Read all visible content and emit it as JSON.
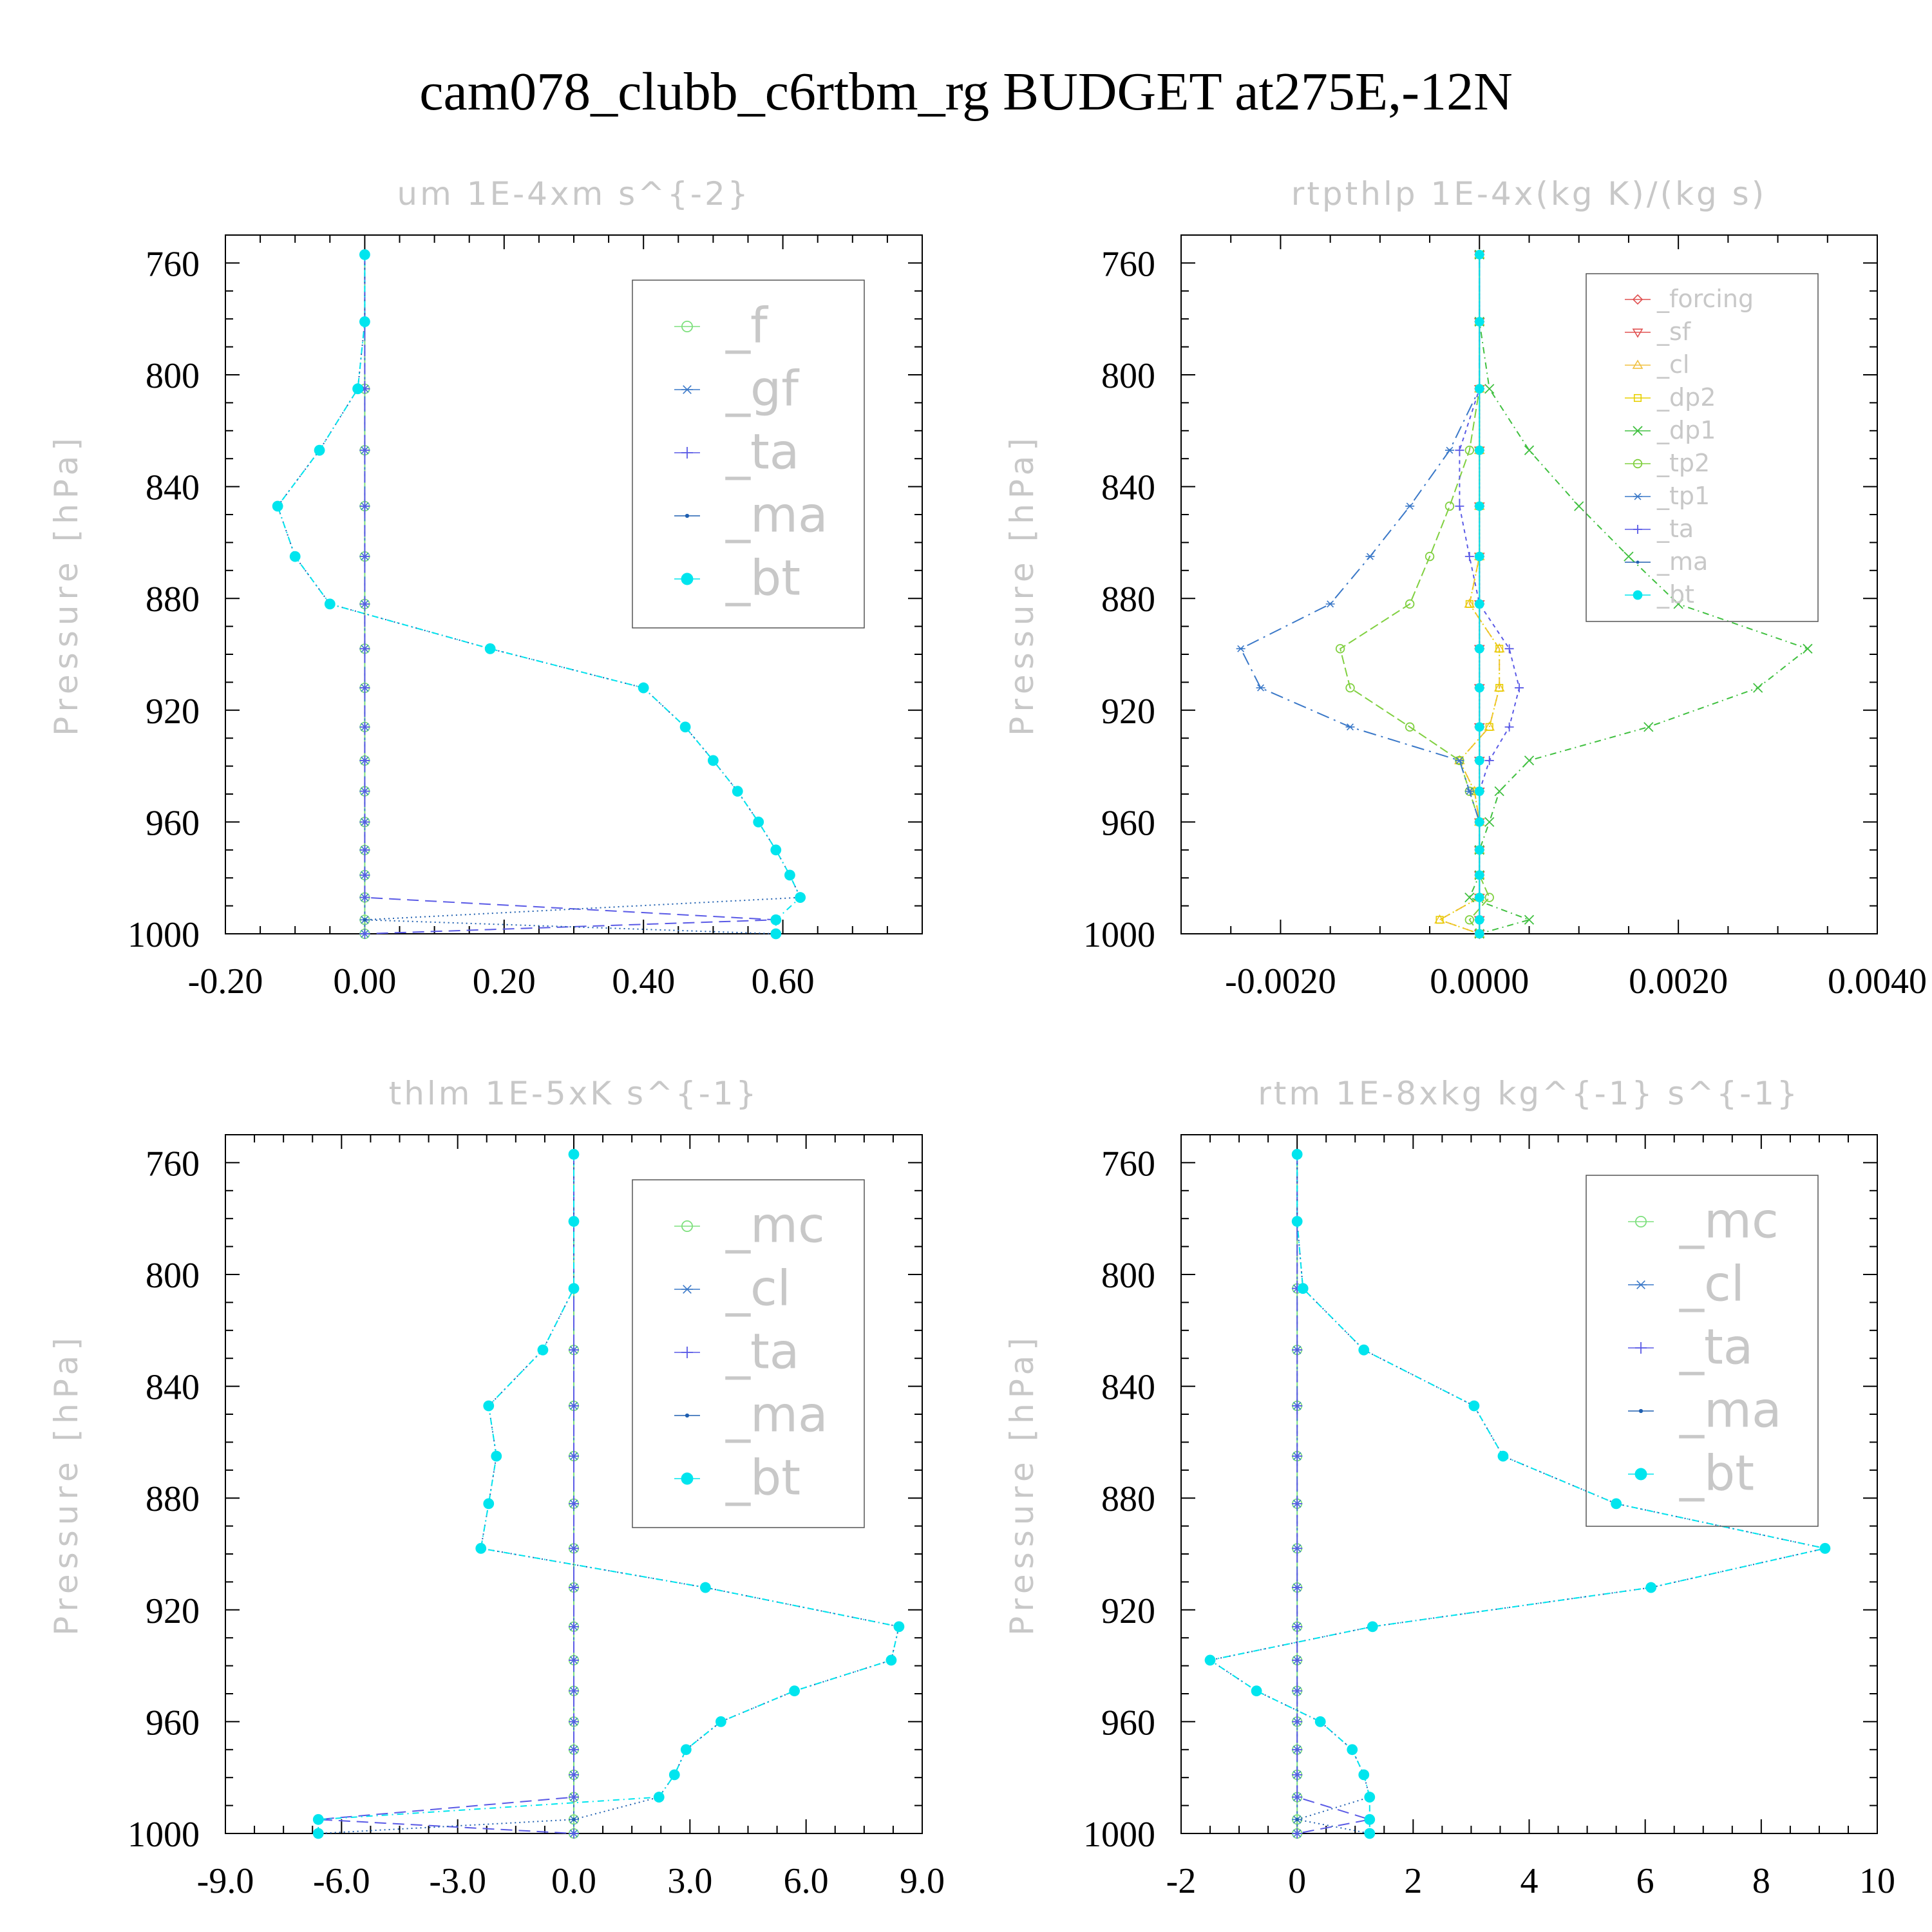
{
  "title": "cam078_clubb_c6rtbm_rg  BUDGET at275E,-12N",
  "pressure_levels": [
    757,
    781,
    805,
    827,
    847,
    865,
    882,
    898,
    912,
    926,
    938,
    949,
    960,
    970,
    979,
    987,
    995,
    1000
  ],
  "chart_data": [
    {
      "type": "line",
      "title": "um   1E-4xm s^{-2}",
      "ylabel": "Pressure [hPa]",
      "xlim": [
        -0.2,
        0.8
      ],
      "ylim": [
        1000,
        750
      ],
      "x_ticks": [
        "-0.20",
        "0.00",
        "0.20",
        "0.40",
        "0.60"
      ],
      "x_tick_values": [
        -0.2,
        0.0,
        0.2,
        0.4,
        0.6
      ],
      "y_ticks": [
        "760",
        "800",
        "840",
        "880",
        "920",
        "960",
        "1000"
      ],
      "y_tick_values": [
        760,
        800,
        840,
        880,
        920,
        960,
        1000
      ],
      "legend_placement": "top-right",
      "series": [
        {
          "name": "_f",
          "color": "#7ee07e",
          "marker": "circle-open",
          "values": [
            0,
            0,
            0,
            0,
            0,
            0,
            0,
            0,
            0,
            0,
            0,
            0,
            0,
            0,
            0,
            0,
            0,
            0
          ]
        },
        {
          "name": "_gf",
          "color": "#3a78c8",
          "marker": "asterisk",
          "values": [
            0,
            0,
            0,
            0,
            0,
            0,
            0,
            0,
            0,
            0,
            0,
            0,
            0,
            0,
            0,
            0,
            0,
            0
          ]
        },
        {
          "name": "_ta",
          "color": "#5a5ae6",
          "marker": "plus",
          "values": [
            0,
            0,
            0,
            0,
            0,
            0,
            0,
            0,
            0,
            0,
            0,
            0,
            0,
            0,
            0,
            0,
            0.59,
            0
          ]
        },
        {
          "name": "_ma",
          "color": "#1f5fb0",
          "marker": "dot",
          "values": [
            0,
            0,
            -0.01,
            -0.065,
            -0.125,
            -0.1,
            -0.05,
            0.18,
            0.4,
            0.46,
            0.5,
            0.535,
            0.565,
            0.59,
            0.61,
            0.625,
            0,
            0.59
          ]
        },
        {
          "name": "_bt",
          "color": "#00e5ee",
          "marker": "disc",
          "values": [
            0,
            0,
            -0.01,
            -0.065,
            -0.125,
            -0.1,
            -0.05,
            0.18,
            0.4,
            0.46,
            0.5,
            0.535,
            0.565,
            0.59,
            0.61,
            0.625,
            0.59,
            0.59
          ]
        }
      ]
    },
    {
      "type": "line",
      "title": "rtpthlp   1E-4x(kg K)/(kg s)",
      "ylabel": "Pressure [hPa]",
      "xlim": [
        -0.003,
        0.004
      ],
      "ylim": [
        1000,
        750
      ],
      "x_ticks": [
        "-0.0020",
        "0.0000",
        "0.0020",
        "0.0040"
      ],
      "x_tick_values": [
        -0.002,
        0.0,
        0.002,
        0.004
      ],
      "y_ticks": [
        "760",
        "800",
        "840",
        "880",
        "920",
        "960",
        "1000"
      ],
      "y_tick_values": [
        760,
        800,
        840,
        880,
        920,
        960,
        1000
      ],
      "legend_placement": "top-right",
      "series": [
        {
          "name": "_forcing",
          "color": "#e05050",
          "marker": "diamond",
          "values": [
            0,
            0,
            0,
            0,
            0,
            0,
            0,
            0,
            0,
            0,
            0,
            0,
            0,
            0,
            0,
            0,
            0,
            0
          ]
        },
        {
          "name": "_sf",
          "color": "#e05050",
          "marker": "triangle-down",
          "values": [
            0,
            0,
            0,
            0,
            0,
            0,
            0,
            0,
            0,
            0,
            0,
            0,
            0,
            0,
            0,
            0,
            0,
            0
          ]
        },
        {
          "name": "_cl",
          "color": "#f0c040",
          "marker": "triangle-up",
          "values": [
            0,
            0,
            0,
            0,
            0,
            0,
            -0.0001,
            0.0002,
            0.0002,
            0.0001,
            -0.0002,
            -5e-05,
            0,
            0,
            0,
            0,
            -0.0004,
            0
          ]
        },
        {
          "name": "_dp2",
          "color": "#e8d000",
          "marker": "square",
          "values": [
            0,
            0,
            0,
            0,
            0,
            0,
            -0.0001,
            0.0002,
            0.0002,
            0.0001,
            -0.0002,
            -5e-05,
            0,
            0,
            0,
            0,
            -0.0004,
            0
          ]
        },
        {
          "name": "_dp1",
          "color": "#40c040",
          "marker": "cross",
          "values": [
            0,
            0,
            0.0001,
            0.0005,
            0.001,
            0.0015,
            0.002,
            0.0033,
            0.0028,
            0.0017,
            0.0005,
            0.0002,
            0.0001,
            0,
            0,
            -0.0001,
            0.0005,
            0
          ]
        },
        {
          "name": "_tp2",
          "color": "#80d040",
          "marker": "circle-open",
          "values": [
            0,
            0,
            0,
            -0.0001,
            -0.0003,
            -0.0005,
            -0.0007,
            -0.0014,
            -0.0013,
            -0.0007,
            -0.0002,
            -0.0001,
            0,
            0,
            0,
            0.0001,
            -0.0001,
            0
          ]
        },
        {
          "name": "_tp1",
          "color": "#3a78c8",
          "marker": "asterisk",
          "values": [
            0,
            0,
            0,
            -0.0003,
            -0.0007,
            -0.0011,
            -0.0015,
            -0.0024,
            -0.0022,
            -0.0013,
            -0.0002,
            -0.0001,
            0,
            0,
            0,
            0,
            0,
            0
          ]
        },
        {
          "name": "_ta",
          "color": "#5a5ae6",
          "marker": "plus",
          "values": [
            0,
            0,
            0,
            -0.0002,
            -0.0002,
            -0.0001,
            0,
            0.0003,
            0.0004,
            0.0003,
            0.0001,
            0,
            0,
            0,
            0,
            0,
            0,
            0
          ]
        },
        {
          "name": "_ma",
          "color": "#1f5fb0",
          "marker": "dot",
          "values": [
            0,
            0,
            0,
            0,
            0,
            0,
            0,
            0,
            0,
            0,
            0,
            0,
            0,
            0,
            0,
            0,
            0,
            0
          ]
        },
        {
          "name": "_bt",
          "color": "#00e5ee",
          "marker": "disc",
          "values": [
            0,
            0,
            0,
            0,
            0,
            0,
            0,
            0,
            0,
            0,
            0,
            0,
            0,
            0,
            0,
            0,
            0,
            0
          ]
        }
      ]
    },
    {
      "type": "line",
      "title": "thlm   1E-5xK s^{-1}",
      "ylabel": "Pressure [hPa]",
      "xlim": [
        -9,
        9
      ],
      "ylim": [
        1000,
        750
      ],
      "x_ticks": [
        "-9.0",
        "-6.0",
        "-3.0",
        "0.0",
        "3.0",
        "6.0",
        "9.0"
      ],
      "x_tick_values": [
        -9,
        -6,
        -3,
        0,
        3,
        6,
        9
      ],
      "y_ticks": [
        "760",
        "800",
        "840",
        "880",
        "920",
        "960",
        "1000"
      ],
      "y_tick_values": [
        760,
        800,
        840,
        880,
        920,
        960,
        1000
      ],
      "legend_placement": "top-right",
      "series": [
        {
          "name": "_mc",
          "color": "#7ee07e",
          "marker": "circle-open",
          "values": [
            0,
            0,
            0,
            0,
            0,
            0,
            0,
            0,
            0,
            0,
            0,
            0,
            0,
            0,
            0,
            0,
            0,
            0
          ]
        },
        {
          "name": "_cl",
          "color": "#3a78c8",
          "marker": "asterisk",
          "values": [
            0,
            0,
            0,
            0,
            0,
            0,
            0,
            0,
            0,
            0,
            0,
            0,
            0,
            0,
            0,
            0,
            0,
            0
          ]
        },
        {
          "name": "_ta",
          "color": "#5a5ae6",
          "marker": "plus",
          "values": [
            0,
            0,
            0,
            0,
            0,
            0,
            0,
            0,
            0,
            0,
            0,
            0,
            0,
            0,
            0,
            0,
            -6.6,
            0
          ]
        },
        {
          "name": "_ma",
          "color": "#1f5fb0",
          "marker": "dot",
          "values": [
            0,
            0,
            0,
            -0.8,
            -2.2,
            -2,
            -2.2,
            -2.4,
            3.4,
            8.4,
            8.2,
            5.7,
            3.8,
            2.9,
            2.6,
            2.2,
            0,
            -6.6
          ]
        },
        {
          "name": "_bt",
          "color": "#00e5ee",
          "marker": "disc",
          "values": [
            0,
            0,
            0,
            -0.8,
            -2.2,
            -2,
            -2.2,
            -2.4,
            3.4,
            8.4,
            8.2,
            5.7,
            3.8,
            2.9,
            2.6,
            2.2,
            -6.6,
            -6.6
          ]
        }
      ]
    },
    {
      "type": "line",
      "title": "rtm   1E-8xkg kg^{-1} s^{-1}",
      "ylabel": "Pressure [hPa]",
      "xlim": [
        -2,
        10
      ],
      "ylim": [
        1000,
        750
      ],
      "x_ticks": [
        "-2",
        "0",
        "2",
        "4",
        "6",
        "8",
        "10"
      ],
      "x_tick_values": [
        -2,
        0,
        2,
        4,
        6,
        8,
        10
      ],
      "y_ticks": [
        "760",
        "800",
        "840",
        "880",
        "920",
        "960",
        "1000"
      ],
      "y_tick_values": [
        760,
        800,
        840,
        880,
        920,
        960,
        1000
      ],
      "legend_placement": "top-right",
      "series": [
        {
          "name": "_mc",
          "color": "#7ee07e",
          "marker": "circle-open",
          "values": [
            0,
            0,
            0,
            0,
            0,
            0,
            0,
            0,
            0,
            0,
            0,
            0,
            0,
            0,
            0,
            0,
            0,
            0
          ]
        },
        {
          "name": "_cl",
          "color": "#3a78c8",
          "marker": "asterisk",
          "values": [
            0,
            0,
            0,
            0,
            0,
            0,
            0,
            0,
            0,
            0,
            0,
            0,
            0,
            0,
            0,
            0,
            0,
            0
          ]
        },
        {
          "name": "_ta",
          "color": "#5a5ae6",
          "marker": "plus",
          "values": [
            0,
            0,
            0,
            0,
            0,
            0,
            0,
            0,
            0,
            0,
            0,
            0,
            0,
            0,
            0,
            0,
            1.25,
            0
          ]
        },
        {
          "name": "_ma",
          "color": "#1f5fb0",
          "marker": "dot",
          "values": [
            0,
            0,
            0.1,
            1.15,
            3.05,
            3.55,
            5.5,
            9.1,
            6.1,
            1.3,
            -1.5,
            -0.7,
            0.4,
            0.95,
            1.15,
            1.25,
            0,
            1.25
          ]
        },
        {
          "name": "_bt",
          "color": "#00e5ee",
          "marker": "disc",
          "values": [
            0,
            0,
            0.1,
            1.15,
            3.05,
            3.55,
            5.5,
            9.1,
            6.1,
            1.3,
            -1.5,
            -0.7,
            0.4,
            0.95,
            1.15,
            1.25,
            1.25,
            1.25
          ]
        }
      ]
    }
  ]
}
